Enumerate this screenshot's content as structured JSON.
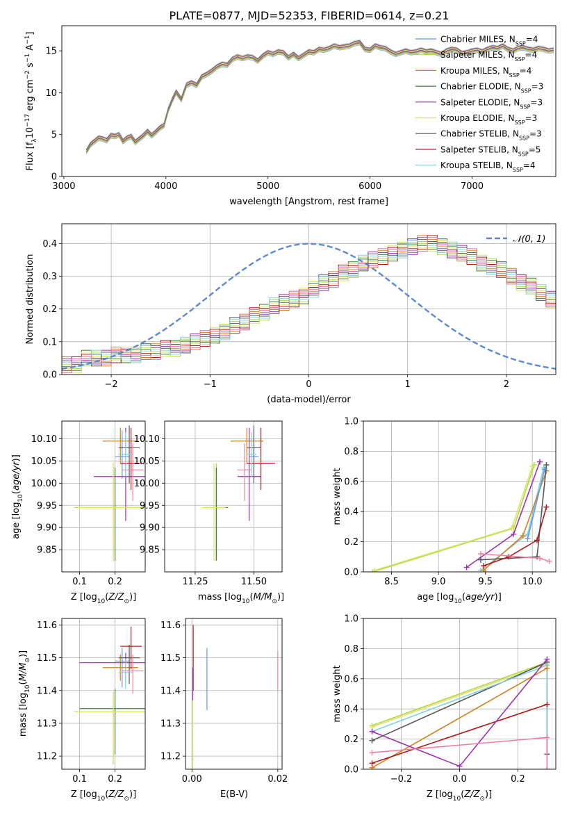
{
  "figure": {
    "title": "PLATE=0877, MJD=52353, FIBERID=0614, z=0.21"
  },
  "series_legend": [
    {
      "name": "Chabrier MILES, N$_{SSP}$=4",
      "label": "Chabrier MILES, N",
      "sub": "SSP",
      "n": "=4",
      "color": "#6495ed"
    },
    {
      "name": "Salpeter MILES, N$_{SSP}$=4",
      "label": "Salpeter MILES, N",
      "sub": "SSP",
      "n": "=4",
      "color": "#b3d942"
    },
    {
      "name": "Kroupa MILES, N$_{SSP}$=4",
      "label": "Kroupa MILES, N",
      "sub": "SSP",
      "n": "=4",
      "color": "#d2801c"
    },
    {
      "name": "Chabrier ELODIE, N$_{SSP}$=3",
      "label": "Chabrier ELODIE, N",
      "sub": "SSP",
      "n": "=3",
      "color": "#3a7d3a"
    },
    {
      "name": "Salpeter ELODIE, N$_{SSP}$=3",
      "label": "Salpeter ELODIE, N",
      "sub": "SSP",
      "n": "=3",
      "color": "#9b30b0"
    },
    {
      "name": "Kroupa ELODIE, N$_{SSP}$=3",
      "label": "Kroupa ELODIE, N",
      "sub": "SSP",
      "n": "=3",
      "color": "#dde36a"
    },
    {
      "name": "Chabrier STELIB, N$_{SSP}$=3",
      "label": "Chabrier STELIB, N",
      "sub": "SSP",
      "n": "=3",
      "color": "#555555"
    },
    {
      "name": "Salpeter STELIB, N$_{SSP}$=5",
      "label": "Salpeter STELIB, N",
      "sub": "SSP",
      "n": "=5",
      "color": "#b01818"
    },
    {
      "name": "Kroupa STELIB, N$_{SSP}$=4",
      "label": "Kroupa STELIB, N",
      "sub": "SSP",
      "n": "=4",
      "color": "#7fd3dc"
    }
  ],
  "chart_data": [
    {
      "id": "spectrum",
      "type": "line",
      "xlabel": "wavelength [Angstrom, rest frame]",
      "ylabel": "Flux [f$_\\lambda$10$^{-17}$ erg cm$^{-2}$ s$^{-1}$ A$^{-1}$]",
      "ylabel_parts": {
        "a": "Flux [f",
        "b": "λ",
        "c": "10",
        "d": "−17",
        "e": " erg cm",
        "f": "−2",
        "g": " s",
        "h": "−1",
        "i": " A",
        "j": "−1",
        "k": "]"
      },
      "xlim": [
        2980,
        7820
      ],
      "ylim": [
        0,
        18
      ],
      "xticks": [
        3000,
        4000,
        5000,
        6000,
        7000
      ],
      "yticks": [
        0,
        5,
        10,
        15
      ],
      "data_color": "#808080",
      "data_x": [
        3220,
        3260,
        3300,
        3340,
        3380,
        3420,
        3460,
        3500,
        3540,
        3580,
        3620,
        3660,
        3700,
        3740,
        3780,
        3820,
        3860,
        3900,
        3940,
        3980,
        4020,
        4060,
        4100,
        4150,
        4200,
        4250,
        4300,
        4350,
        4400,
        4450,
        4500,
        4550,
        4600,
        4650,
        4700,
        4750,
        4800,
        4850,
        4900,
        4950,
        5000,
        5050,
        5100,
        5150,
        5200,
        5250,
        5300,
        5350,
        5400,
        5450,
        5500,
        5550,
        5600,
        5650,
        5700,
        5750,
        5800,
        5850,
        5900,
        5950,
        6000,
        6050,
        6100,
        6150,
        6200,
        6250,
        6300,
        6350,
        6400,
        6450,
        6500,
        6550,
        6600,
        6650,
        6700,
        6750,
        6800,
        6850,
        6900,
        6950,
        7000,
        7050,
        7100,
        7150,
        7200,
        7250,
        7300,
        7350,
        7400,
        7450,
        7500,
        7550,
        7600,
        7650,
        7700,
        7750,
        7800
      ],
      "data_y": [
        3.0,
        3.8,
        4.2,
        4.6,
        4.5,
        4.3,
        4.9,
        4.8,
        5.0,
        4.2,
        4.6,
        4.8,
        4.1,
        4.5,
        4.9,
        5.4,
        4.9,
        5.3,
        5.8,
        6.1,
        7.9,
        9.1,
        10.1,
        9.2,
        10.9,
        11.2,
        10.9,
        11.9,
        12.2,
        12.6,
        13.1,
        13.4,
        13.3,
        14.0,
        14.3,
        14.1,
        14.3,
        14.2,
        13.8,
        14.4,
        14.8,
        14.6,
        14.9,
        14.8,
        14.2,
        14.6,
        14.1,
        14.5,
        14.9,
        14.8,
        15.2,
        15.1,
        15.3,
        15.6,
        15.4,
        15.5,
        15.6,
        15.9,
        16.0,
        15.2,
        15.1,
        15.6,
        15.4,
        15.3,
        14.9,
        14.6,
        14.8,
        15.0,
        14.8,
        14.9,
        15.1,
        14.9,
        15.0,
        14.8,
        14.6,
        15.0,
        15.2,
        15.1,
        14.7,
        14.8,
        15.0,
        15.1,
        14.9,
        15.2,
        15.4,
        15.3,
        15.6,
        15.2,
        15.0,
        15.3,
        15.4,
        15.2,
        15.1,
        15.3,
        15.2,
        15.0,
        15.1
      ]
    },
    {
      "id": "residuals",
      "type": "histogram",
      "xlabel": "(data-model)/error",
      "ylabel": "Normed distribution",
      "xlim": [
        -2.5,
        2.5
      ],
      "ylim": [
        0,
        0.46
      ],
      "xticks": [
        -2,
        -1,
        0,
        1,
        2
      ],
      "yticks": [
        0.0,
        0.1,
        0.2,
        0.3,
        0.4
      ],
      "bin_width": 0.1,
      "bins_start": -2.5,
      "histogram_values": [
        0.03,
        0.03,
        0.05,
        0.05,
        0.05,
        0.06,
        0.06,
        0.06,
        0.07,
        0.07,
        0.08,
        0.08,
        0.09,
        0.1,
        0.11,
        0.12,
        0.13,
        0.15,
        0.16,
        0.18,
        0.19,
        0.21,
        0.22,
        0.23,
        0.24,
        0.26,
        0.28,
        0.29,
        0.31,
        0.32,
        0.34,
        0.35,
        0.36,
        0.37,
        0.38,
        0.39,
        0.4,
        0.4,
        0.39,
        0.38,
        0.37,
        0.36,
        0.34,
        0.33,
        0.32,
        0.3,
        0.28,
        0.27,
        0.25,
        0.23,
        0.21
      ],
      "legend": "𝒩(0, 1)",
      "legend_position": "upper right",
      "normal_curve_color": "#5a8ad6",
      "grid": true
    },
    {
      "id": "age_vs_Z",
      "type": "scatter",
      "xlabel": "Z [log$_{10}$($Z/Z_\\odot$)]",
      "ylabel": "age  [log$_{10}$($age/yr$)]",
      "xlim": [
        0.05,
        0.285
      ],
      "ylim": [
        9.8,
        10.14
      ],
      "xticks": [
        0.1,
        0.2
      ],
      "yticks": [
        9.85,
        9.9,
        9.95,
        10.0,
        10.05,
        10.1
      ],
      "points": [
        {
          "x": 0.22,
          "y": 10.06,
          "xerr": 0.02,
          "yerr_lo": 0.05,
          "yerr_hi": 0.06,
          "color": "#6495ed"
        },
        {
          "x": 0.195,
          "y": 9.945,
          "xerr": 0.11,
          "yerr_lo": 0.1,
          "yerr_hi": 0.1,
          "color": "#b3d942"
        },
        {
          "x": 0.215,
          "y": 10.095,
          "xerr": 0.05,
          "yerr_lo": 0.05,
          "yerr_hi": 0.03,
          "color": "#d2801c"
        },
        {
          "x": 0.2,
          "y": 9.945,
          "xerr": 0.1,
          "yerr_lo": 0.12,
          "yerr_hi": 0.09,
          "color": "#3a7d3a"
        },
        {
          "x": 0.23,
          "y": 10.015,
          "xerr": 0.09,
          "yerr_lo": 0.1,
          "yerr_hi": 0.11,
          "color": "#9b30b0"
        },
        {
          "x": 0.195,
          "y": 9.945,
          "xerr": 0.1,
          "yerr_lo": 0.12,
          "yerr_hi": 0.1,
          "color": "#dde36a"
        },
        {
          "x": 0.24,
          "y": 10.08,
          "xerr": 0.03,
          "yerr_lo": 0.08,
          "yerr_hi": 0.05,
          "color": "#555555"
        },
        {
          "x": 0.245,
          "y": 10.045,
          "xerr": 0.03,
          "yerr_lo": 0.06,
          "yerr_hi": 0.08,
          "color": "#b01818"
        },
        {
          "x": 0.25,
          "y": 10.03,
          "xerr": 0.03,
          "yerr_lo": 0.07,
          "yerr_hi": 0.06,
          "color": "#f080a0"
        },
        {
          "x": 0.23,
          "y": 10.065,
          "xerr": 0.02,
          "yerr_lo": 0.05,
          "yerr_hi": 0.05,
          "color": "#7fd3dc"
        }
      ],
      "grid": true
    },
    {
      "id": "age_vs_mass",
      "type": "scatter",
      "xlabel": "mass [log$_{10}$($M/M_\\odot$)]",
      "ylabel": "",
      "xlim": [
        11.12,
        11.62
      ],
      "ylim": [
        9.8,
        10.14
      ],
      "xticks": [
        11.25,
        11.5
      ],
      "yticks": [
        9.85,
        9.9,
        9.95,
        10.0,
        10.05,
        10.1
      ],
      "points": [
        {
          "x": 11.5,
          "y": 10.06,
          "xerr": 0.02,
          "yerr_lo": 0.05,
          "yerr_hi": 0.06,
          "color": "#6495ed"
        },
        {
          "x": 11.34,
          "y": 9.945,
          "xerr": 0.05,
          "yerr_lo": 0.1,
          "yerr_hi": 0.1,
          "color": "#b3d942"
        },
        {
          "x": 11.47,
          "y": 10.095,
          "xerr": 0.07,
          "yerr_lo": 0.05,
          "yerr_hi": 0.03,
          "color": "#d2801c"
        },
        {
          "x": 11.34,
          "y": 9.945,
          "xerr": 0.05,
          "yerr_lo": 0.12,
          "yerr_hi": 0.09,
          "color": "#3a7d3a"
        },
        {
          "x": 11.48,
          "y": 10.015,
          "xerr": 0.05,
          "yerr_lo": 0.1,
          "yerr_hi": 0.11,
          "color": "#9b30b0"
        },
        {
          "x": 11.33,
          "y": 9.945,
          "xerr": 0.05,
          "yerr_lo": 0.12,
          "yerr_hi": 0.1,
          "color": "#dde36a"
        },
        {
          "x": 11.5,
          "y": 10.08,
          "xerr": 0.03,
          "yerr_lo": 0.08,
          "yerr_hi": 0.05,
          "color": "#555555"
        },
        {
          "x": 11.53,
          "y": 10.045,
          "xerr": 0.06,
          "yerr_lo": 0.06,
          "yerr_hi": 0.08,
          "color": "#b01818"
        },
        {
          "x": 11.46,
          "y": 10.03,
          "xerr": 0.03,
          "yerr_lo": 0.07,
          "yerr_hi": 0.06,
          "color": "#f080a0"
        },
        {
          "x": 11.49,
          "y": 10.065,
          "xerr": 0.02,
          "yerr_lo": 0.05,
          "yerr_hi": 0.05,
          "color": "#7fd3dc"
        }
      ],
      "grid": true
    },
    {
      "id": "mass_weight_vs_age",
      "type": "line",
      "xlabel": "age  [log$_{10}$($age/yr$)]",
      "ylabel": "mass weight",
      "xlim": [
        8.2,
        10.25
      ],
      "ylim": [
        0,
        1.0
      ],
      "xticks": [
        8.5,
        9.0,
        9.5,
        10.0
      ],
      "yticks": [
        0.0,
        0.2,
        0.4,
        0.6,
        0.8,
        1.0
      ],
      "series": [
        {
          "color": "#b3d942",
          "x": [
            8.3,
            9.8,
            10.02
          ],
          "y": [
            0.0,
            0.29,
            0.71
          ]
        },
        {
          "color": "#dde36a",
          "x": [
            8.32,
            9.78,
            10.0
          ],
          "y": [
            0.01,
            0.29,
            0.7
          ]
        },
        {
          "color": "#9b30b0",
          "x": [
            9.3,
            9.8,
            10.08
          ],
          "y": [
            0.03,
            0.25,
            0.73
          ]
        },
        {
          "color": "#7fd3dc",
          "x": [
            9.45,
            9.95,
            10.12
          ],
          "y": [
            0.01,
            0.25,
            0.69
          ]
        },
        {
          "color": "#d2801c",
          "x": [
            9.48,
            9.9,
            10.15
          ],
          "y": [
            0.01,
            0.24,
            0.67
          ]
        },
        {
          "color": "#555555",
          "x": [
            9.45,
            10.05,
            10.15
          ],
          "y": [
            0.08,
            0.1,
            0.71
          ]
        },
        {
          "color": "#b01818",
          "x": [
            9.48,
            9.75,
            10.05,
            10.15
          ],
          "y": [
            0.04,
            0.1,
            0.21,
            0.43
          ]
        },
        {
          "color": "#f080a0",
          "x": [
            9.45,
            10.08,
            10.18
          ],
          "y": [
            0.12,
            0.09,
            0.07
          ]
        },
        {
          "color": "#6495ed",
          "x": [
            9.95,
            10.13
          ],
          "y": [
            0.22,
            0.68
          ]
        }
      ],
      "grid": true
    },
    {
      "id": "mass_vs_Z",
      "type": "scatter",
      "xlabel": "Z [log$_{10}$($Z/Z_\\odot$)]",
      "ylabel": "mass [log$_{10}$($M/M_\\odot$)]",
      "xlim": [
        0.05,
        0.285
      ],
      "ylim": [
        11.16,
        11.62
      ],
      "xticks": [
        0.1,
        0.2
      ],
      "yticks": [
        11.2,
        11.3,
        11.4,
        11.5,
        11.6
      ],
      "points": [
        {
          "x": 0.22,
          "y": 11.49,
          "xerr": 0.02,
          "yerr_lo": 0.08,
          "yerr_hi": 0.04,
          "color": "#6495ed"
        },
        {
          "x": 0.195,
          "y": 11.335,
          "xerr": 0.11,
          "yerr_lo": 0.16,
          "yerr_hi": 0.06,
          "color": "#b3d942"
        },
        {
          "x": 0.215,
          "y": 11.47,
          "xerr": 0.05,
          "yerr_lo": 0.04,
          "yerr_hi": 0.04,
          "color": "#d2801c"
        },
        {
          "x": 0.2,
          "y": 11.345,
          "xerr": 0.1,
          "yerr_lo": 0.14,
          "yerr_hi": 0.06,
          "color": "#3a7d3a"
        },
        {
          "x": 0.23,
          "y": 11.485,
          "xerr": 0.13,
          "yerr_lo": 0.06,
          "yerr_hi": 0.03,
          "color": "#9b30b0"
        },
        {
          "x": 0.195,
          "y": 11.335,
          "xerr": 0.1,
          "yerr_lo": 0.15,
          "yerr_hi": 0.06,
          "color": "#dde36a"
        },
        {
          "x": 0.24,
          "y": 11.5,
          "xerr": 0.03,
          "yerr_lo": 0.08,
          "yerr_hi": 0.04,
          "color": "#555555"
        },
        {
          "x": 0.245,
          "y": 11.535,
          "xerr": 0.03,
          "yerr_lo": 0.07,
          "yerr_hi": 0.06,
          "color": "#b01818"
        },
        {
          "x": 0.25,
          "y": 11.46,
          "xerr": 0.03,
          "yerr_lo": 0.07,
          "yerr_hi": 0.05,
          "color": "#f080a0"
        },
        {
          "x": 0.23,
          "y": 11.455,
          "xerr": 0.02,
          "yerr_lo": 0.05,
          "yerr_hi": 0.04,
          "color": "#7fd3dc"
        }
      ],
      "grid": true
    },
    {
      "id": "mass_vs_EBV",
      "type": "scatter",
      "xlabel": "E(B-V)",
      "ylabel": "",
      "xlim": [
        -0.0015,
        0.021
      ],
      "ylim": [
        11.16,
        11.62
      ],
      "xticks": [
        0.0,
        0.02
      ],
      "xtick_labels": [
        "0.00",
        "0.02"
      ],
      "yticks": [
        11.2,
        11.3,
        11.4,
        11.5,
        11.6
      ],
      "points": [
        {
          "x": 0.0035,
          "y": 11.44,
          "yerr_lo": 0.1,
          "yerr_hi": 0.09,
          "color": "#6495ed"
        },
        {
          "x": 0.0002,
          "y": 11.3,
          "yerr_lo": 0.14,
          "yerr_hi": 0.08,
          "color": "#dde36a"
        },
        {
          "x": 0.0003,
          "y": 11.5,
          "yerr_lo": 0.1,
          "yerr_hi": 0.1,
          "color": "#b01818"
        },
        {
          "x": 0.0002,
          "y": 11.42,
          "yerr_lo": 0.05,
          "yerr_hi": 0.05,
          "color": "#9b30b0"
        },
        {
          "x": 0.02,
          "y": 11.46,
          "yerr_lo": 0.06,
          "yerr_hi": 0.06,
          "color": "#f080a0"
        }
      ],
      "grid": true
    },
    {
      "id": "mass_weight_vs_Z",
      "type": "line",
      "xlabel": "Z [log$_{10}$($Z/Z_\\odot$)]",
      "ylabel": "mass weight",
      "xlim": [
        -0.33,
        0.33
      ],
      "ylim": [
        0,
        1.0
      ],
      "xticks": [
        -0.2,
        0.0,
        0.2
      ],
      "xtick_labels": [
        "−0.2",
        "0.0",
        "0.2"
      ],
      "yticks": [
        0.0,
        0.2,
        0.4,
        0.6,
        0.8,
        1.0
      ],
      "series": [
        {
          "color": "#b3d942",
          "x": [
            -0.3,
            0.3
          ],
          "y": [
            0.29,
            0.71
          ]
        },
        {
          "color": "#dde36a",
          "x": [
            -0.3,
            0.3
          ],
          "y": [
            0.28,
            0.7
          ]
        },
        {
          "color": "#555555",
          "x": [
            -0.3,
            0.3,
            0.3
          ],
          "y": [
            0.19,
            0.71,
            0.1
          ]
        },
        {
          "color": "#7fd3dc",
          "x": [
            -0.3,
            0.3,
            0.3
          ],
          "y": [
            0.25,
            0.69,
            0.0
          ]
        },
        {
          "color": "#d2801c",
          "x": [
            -0.3,
            0.3
          ],
          "y": [
            0.01,
            0.67
          ]
        },
        {
          "color": "#b01818",
          "x": [
            -0.3,
            0.3
          ],
          "y": [
            0.04,
            0.43
          ]
        },
        {
          "color": "#9b30b0",
          "x": [
            -0.3,
            0.0,
            0.3
          ],
          "y": [
            0.25,
            0.02,
            0.73
          ]
        },
        {
          "color": "#f080a0",
          "x": [
            -0.3,
            0.3,
            0.3
          ],
          "y": [
            0.11,
            0.21,
            0.0
          ]
        }
      ],
      "grid": true
    }
  ]
}
